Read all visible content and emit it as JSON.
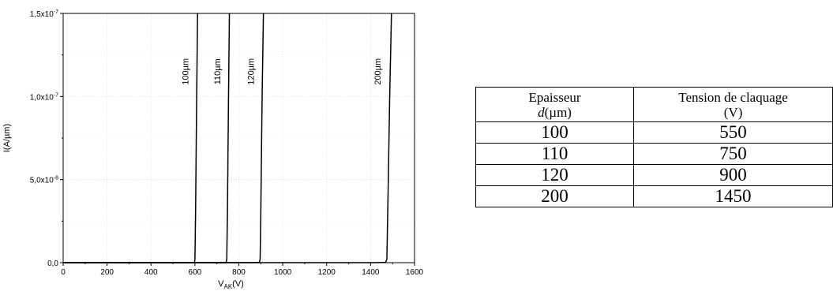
{
  "chart_data": {
    "type": "line",
    "xlabel_main": "V",
    "xlabel_sub": "AK",
    "xlabel_unit": "(V)",
    "ylabel": "I(A/µm)",
    "xlim": [
      0,
      1600
    ],
    "ylim": [
      0,
      1.5e-07
    ],
    "x_ticks": [
      "0",
      "200",
      "400",
      "600",
      "800",
      "1000",
      "1200",
      "1400",
      "1600"
    ],
    "y_ticks": [
      {
        "value": 0,
        "label": "0,0",
        "exp": ""
      },
      {
        "value": 5e-08,
        "label": "5,0x10",
        "exp": "-8"
      },
      {
        "value": 1e-07,
        "label": "1,0x10",
        "exp": "-7"
      },
      {
        "value": 1.5e-07,
        "label": "1,5x10",
        "exp": "-7"
      }
    ],
    "grid": true,
    "series": [
      {
        "name": "100µm",
        "x": [
          0,
          580,
          598,
          600,
          603,
          608,
          612
        ],
        "y": [
          0,
          0,
          2e-10,
          2e-09,
          3e-08,
          1e-07,
          1.5e-07
        ]
      },
      {
        "name": "110µm",
        "x": [
          0,
          725,
          742,
          745,
          748,
          753,
          757
        ],
        "y": [
          0,
          0,
          2e-10,
          2e-09,
          3e-08,
          1e-07,
          1.5e-07
        ]
      },
      {
        "name": "120µm",
        "x": [
          0,
          860,
          893,
          897,
          900,
          906,
          912
        ],
        "y": [
          0,
          0,
          2e-10,
          2e-09,
          3e-08,
          1e-07,
          1.5e-07
        ]
      },
      {
        "name": "200µm",
        "x": [
          0,
          1420,
          1468,
          1474,
          1478,
          1487,
          1495
        ],
        "y": [
          0,
          0,
          2e-10,
          2e-09,
          3e-08,
          1e-07,
          1.5e-07
        ]
      }
    ],
    "label_y": 1.15e-07
  },
  "table": {
    "header_col1_line1": "Epaisseur",
    "header_col1_var": "d",
    "header_col1_unit": "(µm)",
    "header_col2_line1": "Tension de claquage",
    "header_col2_line2": "(V)",
    "rows": [
      {
        "thickness": "100",
        "voltage": "550"
      },
      {
        "thickness": "110",
        "voltage": "750"
      },
      {
        "thickness": "120",
        "voltage": "900"
      },
      {
        "thickness": "200",
        "voltage": "1450"
      }
    ]
  }
}
